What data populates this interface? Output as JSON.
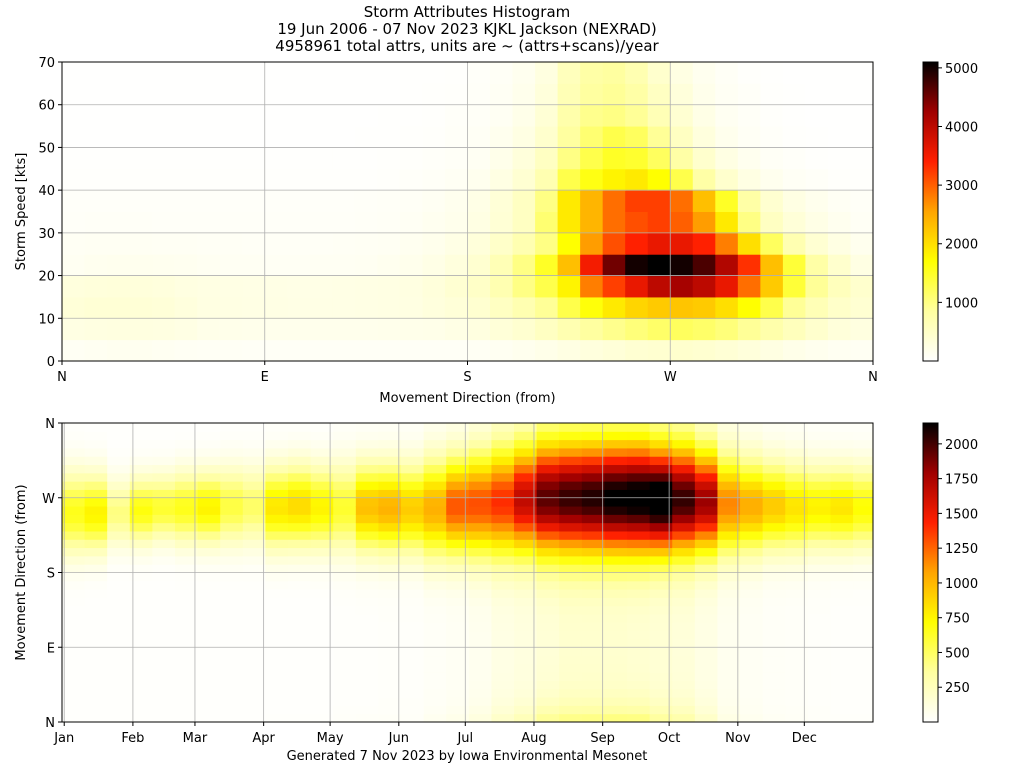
{
  "header": {
    "title": "Storm Attributes Histogram",
    "subtitle": "19 Jun 2006 - 07 Nov 2023 KJKL Jackson (NEXRAD)",
    "subtitle2": "4958961 total attrs, units are ~ (attrs+scans)/year"
  },
  "footer": {
    "text": "Generated 7 Nov 2023 by Iowa Environmental Mesonet"
  },
  "colormap": {
    "name": "hot_r",
    "stops": [
      "#ffffff",
      "#ffffa0",
      "#ffff00",
      "#ffa500",
      "#ff2000",
      "#a00000",
      "#000000"
    ]
  },
  "chart_data": [
    {
      "type": "heatmap",
      "name": "speed-vs-direction",
      "xlabel": "Movement Direction (from)",
      "ylabel": "Storm Speed [kts]",
      "x_ticks": [
        "N",
        "E",
        "S",
        "W",
        "N"
      ],
      "x_tick_values": [
        0,
        90,
        180,
        270,
        360
      ],
      "xlim": [
        0,
        360
      ],
      "y_ticks": [
        "0",
        "10",
        "20",
        "30",
        "40",
        "50",
        "60",
        "70"
      ],
      "y_tick_values": [
        0,
        10,
        20,
        30,
        40,
        50,
        60,
        70
      ],
      "ylim": [
        0,
        70
      ],
      "x_bin_width": 10,
      "y_bin_width": 5,
      "colorbar": {
        "min": 0,
        "max": 5100,
        "ticks": [
          "1000",
          "2000",
          "3000",
          "4000",
          "5000"
        ],
        "tick_values": [
          1000,
          2000,
          3000,
          4000,
          5000
        ]
      },
      "grid": true,
      "values": [
        [
          100,
          120,
          130,
          130,
          120,
          100,
          90,
          90,
          80,
          80,
          80,
          80,
          80,
          80,
          80,
          80,
          80,
          80,
          100,
          120,
          150,
          200,
          250,
          300,
          350,
          400,
          420,
          450,
          420,
          380,
          320,
          260,
          200,
          150,
          120,
          110
        ],
        [
          250,
          270,
          280,
          280,
          270,
          240,
          200,
          190,
          180,
          170,
          170,
          170,
          170,
          170,
          180,
          190,
          200,
          230,
          280,
          350,
          420,
          550,
          700,
          850,
          950,
          1050,
          1150,
          1200,
          1150,
          1050,
          900,
          750,
          600,
          450,
          330,
          280
        ],
        [
          350,
          380,
          380,
          370,
          350,
          300,
          260,
          250,
          240,
          240,
          230,
          230,
          230,
          240,
          250,
          260,
          300,
          350,
          420,
          550,
          700,
          900,
          1300,
          1650,
          1900,
          2100,
          2200,
          2250,
          2200,
          2000,
          1700,
          1300,
          900,
          650,
          480,
          400
        ],
        [
          300,
          320,
          330,
          320,
          300,
          270,
          250,
          240,
          230,
          230,
          220,
          220,
          230,
          240,
          250,
          270,
          320,
          400,
          500,
          700,
          1000,
          1300,
          1800,
          2800,
          3200,
          3600,
          4000,
          4200,
          4000,
          3600,
          2900,
          2200,
          1400,
          900,
          600,
          450
        ],
        [
          120,
          140,
          150,
          150,
          140,
          130,
          120,
          110,
          110,
          100,
          100,
          110,
          110,
          120,
          140,
          170,
          220,
          300,
          420,
          650,
          1000,
          1500,
          2300,
          3500,
          4500,
          5000,
          5100,
          5000,
          4700,
          4100,
          3300,
          2300,
          1400,
          800,
          450,
          250
        ],
        [
          100,
          110,
          110,
          110,
          100,
          100,
          90,
          90,
          80,
          80,
          80,
          80,
          90,
          100,
          110,
          130,
          170,
          230,
          330,
          480,
          700,
          1000,
          1700,
          2600,
          3100,
          3400,
          3600,
          3600,
          3400,
          2800,
          2000,
          1200,
          700,
          400,
          250,
          150
        ],
        [
          60,
          70,
          70,
          70,
          60,
          60,
          60,
          60,
          60,
          60,
          60,
          60,
          60,
          70,
          80,
          100,
          130,
          170,
          250,
          380,
          550,
          1100,
          1900,
          2400,
          2900,
          3100,
          3200,
          3000,
          2600,
          1900,
          1000,
          550,
          350,
          220,
          140,
          90
        ],
        [
          50,
          50,
          50,
          50,
          50,
          50,
          50,
          50,
          50,
          50,
          50,
          50,
          50,
          60,
          70,
          80,
          110,
          150,
          220,
          360,
          550,
          1000,
          1900,
          2400,
          2900,
          3200,
          3200,
          2900,
          2300,
          1500,
          800,
          420,
          250,
          160,
          100,
          70
        ],
        [
          30,
          30,
          30,
          30,
          30,
          30,
          30,
          30,
          30,
          30,
          30,
          30,
          30,
          30,
          40,
          50,
          70,
          100,
          150,
          250,
          400,
          700,
          1300,
          1600,
          1800,
          1900,
          1700,
          1300,
          800,
          450,
          250,
          150,
          90,
          60,
          40,
          30
        ],
        [
          20,
          20,
          20,
          20,
          20,
          20,
          20,
          20,
          20,
          20,
          20,
          20,
          20,
          20,
          30,
          40,
          50,
          70,
          110,
          190,
          320,
          550,
          1000,
          1300,
          1500,
          1450,
          1200,
          800,
          450,
          250,
          140,
          80,
          50,
          30,
          20,
          20
        ],
        [
          10,
          10,
          10,
          10,
          10,
          10,
          10,
          10,
          10,
          10,
          10,
          10,
          10,
          20,
          20,
          30,
          40,
          60,
          90,
          150,
          250,
          450,
          850,
          1100,
          1300,
          1200,
          900,
          550,
          300,
          160,
          90,
          50,
          30,
          20,
          10,
          10
        ],
        [
          10,
          10,
          10,
          10,
          10,
          10,
          10,
          10,
          10,
          10,
          10,
          10,
          10,
          10,
          20,
          20,
          30,
          50,
          70,
          110,
          200,
          380,
          750,
          950,
          1000,
          900,
          650,
          400,
          220,
          120,
          70,
          40,
          20,
          10,
          10,
          10
        ],
        [
          5,
          5,
          5,
          5,
          5,
          5,
          5,
          5,
          5,
          5,
          5,
          5,
          5,
          10,
          10,
          20,
          30,
          40,
          60,
          100,
          170,
          320,
          650,
          850,
          900,
          800,
          550,
          320,
          180,
          100,
          60,
          30,
          20,
          10,
          5,
          5
        ],
        [
          5,
          5,
          5,
          5,
          5,
          5,
          5,
          5,
          5,
          5,
          5,
          5,
          5,
          10,
          10,
          20,
          20,
          30,
          50,
          80,
          140,
          280,
          600,
          800,
          850,
          700,
          450,
          250,
          140,
          80,
          40,
          20,
          10,
          5,
          5,
          5
        ]
      ]
    },
    {
      "type": "heatmap",
      "name": "direction-vs-month",
      "xlabel": "",
      "ylabel": "Movement Direction (from)",
      "x_ticks": [
        "Jan",
        "Feb",
        "Mar",
        "Apr",
        "May",
        "Jun",
        "Jul",
        "Aug",
        "Sep",
        "Oct",
        "Nov",
        "Dec"
      ],
      "x_tick_values": [
        1,
        32,
        60,
        91,
        121,
        152,
        182,
        213,
        244,
        274,
        305,
        335
      ],
      "xlim": [
        0,
        366
      ],
      "y_ticks": [
        "N",
        "E",
        "S",
        "W",
        "N"
      ],
      "y_tick_values": [
        0,
        90,
        180,
        270,
        360
      ],
      "ylim": [
        0,
        360
      ],
      "x_bin_width": 10.2,
      "y_bin_width": 10,
      "colorbar": {
        "min": 0,
        "max": 2150,
        "ticks": [
          "250",
          "500",
          "750",
          "1000",
          "1250",
          "1500",
          "1750",
          "2000"
        ],
        "tick_values": [
          250,
          500,
          750,
          1000,
          1250,
          1500,
          1750,
          2000
        ]
      },
      "grid": true,
      "columns": [
        {
          "center": 252,
          "width": 150,
          "peak": 650,
          "floor": 10
        },
        {
          "center": 252,
          "width": 140,
          "peak": 750,
          "floor": 10
        },
        {
          "center": 252,
          "width": 120,
          "peak": 420,
          "floor": 10
        },
        {
          "center": 255,
          "width": 120,
          "peak": 680,
          "floor": 10
        },
        {
          "center": 258,
          "width": 120,
          "peak": 600,
          "floor": 10
        },
        {
          "center": 258,
          "width": 130,
          "peak": 650,
          "floor": 10
        },
        {
          "center": 258,
          "width": 130,
          "peak": 750,
          "floor": 10
        },
        {
          "center": 260,
          "width": 140,
          "peak": 560,
          "floor": 10
        },
        {
          "center": 260,
          "width": 140,
          "peak": 480,
          "floor": 10
        },
        {
          "center": 258,
          "width": 150,
          "peak": 800,
          "floor": 10
        },
        {
          "center": 260,
          "width": 150,
          "peak": 850,
          "floor": 10
        },
        {
          "center": 258,
          "width": 150,
          "peak": 750,
          "floor": 10
        },
        {
          "center": 258,
          "width": 160,
          "peak": 600,
          "floor": 15
        },
        {
          "center": 258,
          "width": 160,
          "peak": 950,
          "floor": 15
        },
        {
          "center": 257,
          "width": 160,
          "peak": 1000,
          "floor": 20
        },
        {
          "center": 256,
          "width": 160,
          "peak": 900,
          "floor": 20
        },
        {
          "center": 257,
          "width": 180,
          "peak": 1000,
          "floor": 30
        },
        {
          "center": 260,
          "width": 180,
          "peak": 1250,
          "floor": 40
        },
        {
          "center": 262,
          "width": 190,
          "peak": 1250,
          "floor": 60
        },
        {
          "center": 265,
          "width": 200,
          "peak": 1300,
          "floor": 100
        },
        {
          "center": 268,
          "width": 200,
          "peak": 1550,
          "floor": 120
        },
        {
          "center": 270,
          "width": 210,
          "peak": 1800,
          "floor": 150
        },
        {
          "center": 270,
          "width": 210,
          "peak": 1850,
          "floor": 180
        },
        {
          "center": 270,
          "width": 210,
          "peak": 1900,
          "floor": 180
        },
        {
          "center": 270,
          "width": 210,
          "peak": 2000,
          "floor": 180
        },
        {
          "center": 270,
          "width": 210,
          "peak": 2050,
          "floor": 170
        },
        {
          "center": 268,
          "width": 200,
          "peak": 2150,
          "floor": 160
        },
        {
          "center": 268,
          "width": 200,
          "peak": 1900,
          "floor": 140
        },
        {
          "center": 266,
          "width": 190,
          "peak": 1700,
          "floor": 100
        },
        {
          "center": 262,
          "width": 180,
          "peak": 1100,
          "floor": 60
        },
        {
          "center": 260,
          "width": 170,
          "peak": 1000,
          "floor": 40
        },
        {
          "center": 260,
          "width": 160,
          "peak": 900,
          "floor": 30
        },
        {
          "center": 258,
          "width": 160,
          "peak": 800,
          "floor": 25
        },
        {
          "center": 258,
          "width": 150,
          "peak": 750,
          "floor": 20
        },
        {
          "center": 258,
          "width": 150,
          "peak": 800,
          "floor": 15
        },
        {
          "center": 258,
          "width": 150,
          "peak": 700,
          "floor": 15
        },
        {
          "center": 258,
          "width": 140,
          "peak": 450,
          "floor": 10
        },
        {
          "center": 255,
          "width": 140,
          "peak": 600,
          "floor": 10
        },
        {
          "center": 255,
          "width": 140,
          "peak": 650,
          "floor": 10
        },
        {
          "center": 255,
          "width": 130,
          "peak": 350,
          "floor": 10
        },
        {
          "center": 255,
          "width": 130,
          "peak": 450,
          "floor": 10
        },
        {
          "center": 255,
          "width": 130,
          "peak": 550,
          "floor": 10
        },
        {
          "center": 252,
          "width": 140,
          "peak": 450,
          "floor": 10
        },
        {
          "center": 255,
          "width": 140,
          "peak": 400,
          "floor": 10
        },
        {
          "center": 258,
          "width": 140,
          "peak": 850,
          "floor": 10
        },
        {
          "center": 255,
          "width": 140,
          "peak": 500,
          "floor": 10
        },
        {
          "center": 252,
          "width": 150,
          "peak": 550,
          "floor": 10
        }
      ]
    }
  ]
}
